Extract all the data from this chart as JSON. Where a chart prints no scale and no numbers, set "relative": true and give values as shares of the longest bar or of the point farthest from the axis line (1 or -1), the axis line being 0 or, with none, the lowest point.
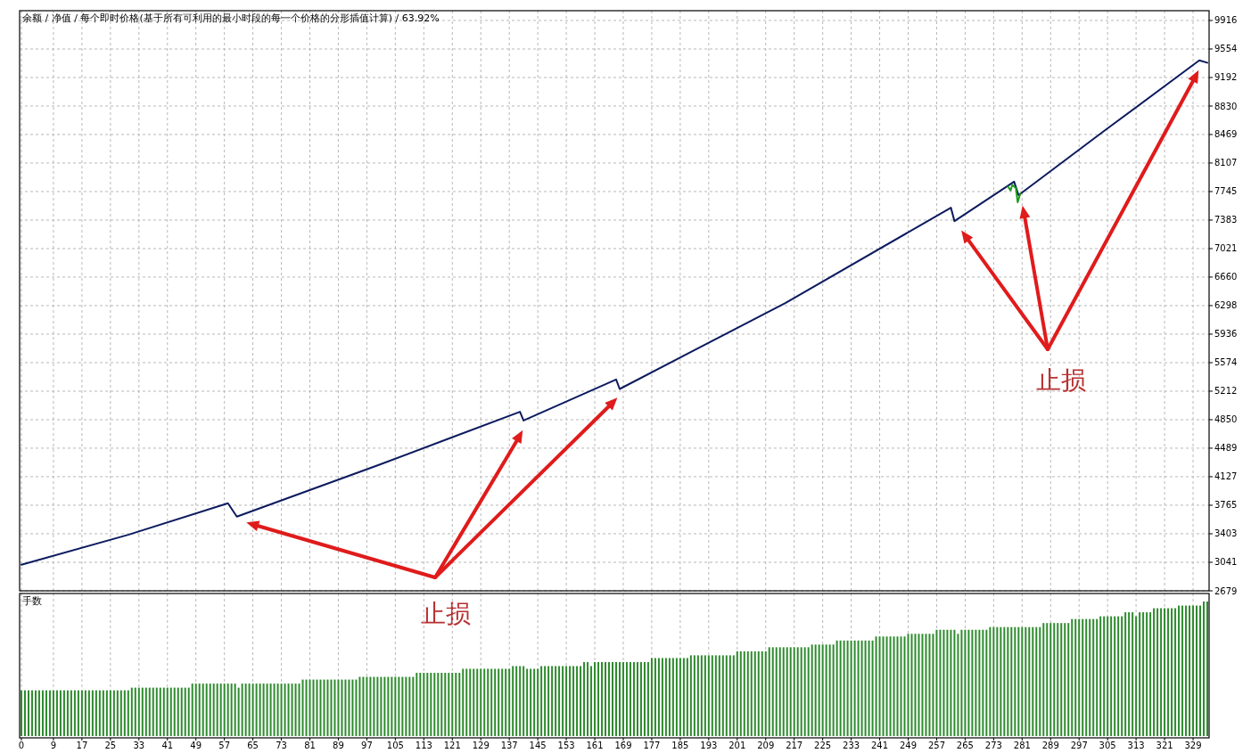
{
  "chart_data": [
    {
      "type": "line",
      "title": "余额 / 净值 / 每个即时价格(基于所有可利用的最小时段的每一个价格的分形插值计算) / 63.92%",
      "grid": true,
      "tick_labels": "y",
      "xlim": [
        -0.5,
        333.5
      ],
      "xticks": [
        0,
        9,
        17,
        25,
        33,
        41,
        49,
        57,
        65,
        73,
        81,
        89,
        97,
        105,
        113,
        121,
        129,
        137,
        145,
        153,
        161,
        169,
        177,
        185,
        193,
        201,
        209,
        217,
        225,
        233,
        241,
        249,
        257,
        265,
        273,
        281,
        289,
        297,
        305,
        313,
        321,
        329
      ],
      "ylim": [
        2679,
        10040
      ],
      "yticks": [
        2679,
        3041,
        3403,
        3765,
        4127,
        4489,
        4850,
        5212,
        5574,
        5936,
        6298,
        6660,
        7021,
        7383,
        7745,
        8107,
        8469,
        8830,
        9192,
        9554,
        9916
      ],
      "series": [
        {
          "color": "#0b1a5e",
          "x": [
            0,
            30,
            58,
            60.5,
            100,
            140,
            141,
            167,
            168,
            214.5,
            261,
            262,
            278.75,
            280,
            304.5,
            330.75,
            333
          ],
          "values": [
            3010,
            3390,
            3790,
            3620,
            4270,
            4950,
            4840,
            5360,
            5240,
            6330,
            7540,
            7370,
            7870,
            7700,
            8530,
            9410,
            9380
          ]
        },
        {
          "color": "#1e9a1e",
          "x": [
            277,
            277.75,
            278.25,
            279.25,
            279.75,
            280.5
          ],
          "values": [
            7810,
            7760,
            7830,
            7790,
            7610,
            7720
          ]
        }
      ],
      "annotations": [
        "止损",
        "止损"
      ]
    },
    {
      "type": "bar",
      "title": "手数",
      "relative": true,
      "grid": "x",
      "tick_labels": "x",
      "xlim": [
        -0.5,
        333.5
      ],
      "xticks": [
        0,
        9,
        17,
        25,
        33,
        41,
        49,
        57,
        65,
        73,
        81,
        89,
        97,
        105,
        113,
        121,
        129,
        137,
        145,
        153,
        161,
        169,
        177,
        185,
        193,
        201,
        209,
        217,
        225,
        233,
        241,
        249,
        257,
        265,
        273,
        281,
        289,
        297,
        305,
        313,
        321,
        329
      ],
      "color": "#2e8b2e",
      "x": [
        0,
        1,
        2,
        3,
        4,
        5,
        6,
        7,
        8,
        9,
        10,
        11,
        12,
        13,
        14,
        15,
        16,
        17,
        18,
        19,
        20,
        21,
        22,
        23,
        24,
        25,
        26,
        27,
        28,
        29,
        30,
        31,
        32,
        33,
        34,
        35,
        36,
        37,
        38,
        39,
        40,
        41,
        42,
        43,
        44,
        45,
        46,
        47,
        48,
        49,
        50,
        51,
        52,
        53,
        54,
        55,
        56,
        57,
        58,
        59,
        60,
        61,
        62,
        63,
        64,
        65,
        66,
        67,
        68,
        69,
        70,
        71,
        72,
        73,
        74,
        75,
        76,
        77,
        78,
        79,
        80,
        81,
        82,
        83,
        84,
        85,
        86,
        87,
        88,
        89,
        90,
        91,
        92,
        93,
        94,
        95,
        96,
        97,
        98,
        99,
        100,
        101,
        102,
        103,
        104,
        105,
        106,
        107,
        108,
        109,
        110,
        111,
        112,
        113,
        114,
        115,
        116,
        117,
        118,
        119,
        120,
        121,
        122,
        123,
        124,
        125,
        126,
        127,
        128,
        129,
        130,
        131,
        132,
        133,
        134,
        135,
        136,
        137,
        138,
        139,
        140,
        141,
        142,
        143,
        144,
        145,
        146,
        147,
        148,
        149,
        150,
        151,
        152,
        153,
        154,
        155,
        156,
        157,
        158,
        159,
        160,
        161,
        162,
        163,
        164,
        165,
        166,
        167,
        168,
        169,
        170,
        171,
        172,
        173,
        174,
        175,
        176,
        177,
        178,
        179,
        180,
        181,
        182,
        183,
        184,
        185,
        186,
        187,
        188,
        189,
        190,
        191,
        192,
        193,
        194,
        195,
        196,
        197,
        198,
        199,
        200,
        201,
        202,
        203,
        204,
        205,
        206,
        207,
        208,
        209,
        210,
        211,
        212,
        213,
        214,
        215,
        216,
        217,
        218,
        219,
        220,
        221,
        222,
        223,
        224,
        225,
        226,
        227,
        228,
        229,
        230,
        231,
        232,
        233,
        234,
        235,
        236,
        237,
        238,
        239,
        240,
        241,
        242,
        243,
        244,
        245,
        246,
        247,
        248,
        249,
        250,
        251,
        252,
        253,
        254,
        255,
        256,
        257,
        258,
        259,
        260,
        261,
        262,
        263,
        264,
        265,
        266,
        267,
        268,
        269,
        270,
        271,
        272,
        273,
        274,
        275,
        276,
        277,
        278,
        279,
        280,
        281,
        282,
        283,
        284,
        285,
        286,
        287,
        288,
        289,
        290,
        291,
        292,
        293,
        294,
        295,
        296,
        297,
        298,
        299,
        300,
        301,
        302,
        303,
        304,
        305,
        306,
        307,
        308,
        309,
        310,
        311,
        312,
        313,
        314,
        315,
        316,
        317,
        318,
        319,
        320,
        321,
        322,
        323,
        324,
        325,
        326,
        327,
        328,
        329,
        330,
        331,
        332,
        333
      ],
      "values": [
        0.34,
        0.34,
        0.34,
        0.34,
        0.34,
        0.34,
        0.34,
        0.34,
        0.34,
        0.34,
        0.34,
        0.34,
        0.34,
        0.34,
        0.34,
        0.34,
        0.34,
        0.34,
        0.34,
        0.34,
        0.34,
        0.34,
        0.34,
        0.34,
        0.34,
        0.34,
        0.34,
        0.34,
        0.34,
        0.34,
        0.34,
        0.36,
        0.36,
        0.36,
        0.36,
        0.36,
        0.36,
        0.36,
        0.36,
        0.36,
        0.36,
        0.36,
        0.36,
        0.36,
        0.36,
        0.36,
        0.36,
        0.36,
        0.39,
        0.39,
        0.39,
        0.39,
        0.39,
        0.39,
        0.39,
        0.39,
        0.39,
        0.39,
        0.39,
        0.39,
        0.39,
        0.36,
        0.39,
        0.39,
        0.39,
        0.39,
        0.39,
        0.39,
        0.39,
        0.39,
        0.39,
        0.39,
        0.39,
        0.39,
        0.39,
        0.39,
        0.39,
        0.39,
        0.39,
        0.42,
        0.42,
        0.42,
        0.42,
        0.42,
        0.42,
        0.42,
        0.42,
        0.42,
        0.42,
        0.42,
        0.42,
        0.42,
        0.42,
        0.42,
        0.42,
        0.44,
        0.44,
        0.44,
        0.44,
        0.44,
        0.44,
        0.44,
        0.44,
        0.44,
        0.44,
        0.44,
        0.44,
        0.44,
        0.44,
        0.44,
        0.44,
        0.47,
        0.47,
        0.47,
        0.47,
        0.47,
        0.47,
        0.47,
        0.47,
        0.47,
        0.47,
        0.47,
        0.47,
        0.47,
        0.5,
        0.5,
        0.5,
        0.5,
        0.5,
        0.5,
        0.5,
        0.5,
        0.5,
        0.5,
        0.5,
        0.5,
        0.5,
        0.5,
        0.52,
        0.52,
        0.52,
        0.52,
        0.5,
        0.5,
        0.5,
        0.5,
        0.52,
        0.52,
        0.52,
        0.52,
        0.52,
        0.52,
        0.52,
        0.52,
        0.52,
        0.52,
        0.52,
        0.52,
        0.55,
        0.55,
        0.52,
        0.55,
        0.55,
        0.55,
        0.55,
        0.55,
        0.55,
        0.55,
        0.55,
        0.55,
        0.55,
        0.55,
        0.55,
        0.55,
        0.55,
        0.55,
        0.55,
        0.58,
        0.58,
        0.58,
        0.58,
        0.58,
        0.58,
        0.58,
        0.58,
        0.58,
        0.58,
        0.58,
        0.6,
        0.6,
        0.6,
        0.6,
        0.6,
        0.6,
        0.6,
        0.6,
        0.6,
        0.6,
        0.6,
        0.6,
        0.6,
        0.63,
        0.63,
        0.63,
        0.63,
        0.63,
        0.63,
        0.63,
        0.63,
        0.63,
        0.66,
        0.66,
        0.66,
        0.66,
        0.66,
        0.66,
        0.66,
        0.66,
        0.66,
        0.66,
        0.66,
        0.66,
        0.68,
        0.68,
        0.68,
        0.68,
        0.68,
        0.68,
        0.68,
        0.71,
        0.71,
        0.71,
        0.71,
        0.71,
        0.71,
        0.71,
        0.71,
        0.71,
        0.71,
        0.71,
        0.74,
        0.74,
        0.74,
        0.74,
        0.74,
        0.74,
        0.74,
        0.74,
        0.74,
        0.76,
        0.76,
        0.76,
        0.76,
        0.76,
        0.76,
        0.76,
        0.76,
        0.79,
        0.79,
        0.79,
        0.79,
        0.79,
        0.79,
        0.76,
        0.79,
        0.79,
        0.79,
        0.79,
        0.79,
        0.79,
        0.79,
        0.79,
        0.81,
        0.81,
        0.81,
        0.81,
        0.81,
        0.81,
        0.81,
        0.81,
        0.81,
        0.81,
        0.81,
        0.81,
        0.81,
        0.81,
        0.81,
        0.84,
        0.84,
        0.84,
        0.84,
        0.84,
        0.84,
        0.84,
        0.84,
        0.87,
        0.87,
        0.87,
        0.87,
        0.87,
        0.87,
        0.87,
        0.87,
        0.89,
        0.89,
        0.89,
        0.89,
        0.89,
        0.89,
        0.89,
        0.92,
        0.92,
        0.92,
        0.89,
        0.92,
        0.92,
        0.92,
        0.92,
        0.95,
        0.95,
        0.95,
        0.95,
        0.95,
        0.95,
        0.95,
        0.97,
        0.97,
        0.97,
        0.97,
        0.97,
        0.97,
        0.97,
        1,
        1
      ]
    }
  ]
}
